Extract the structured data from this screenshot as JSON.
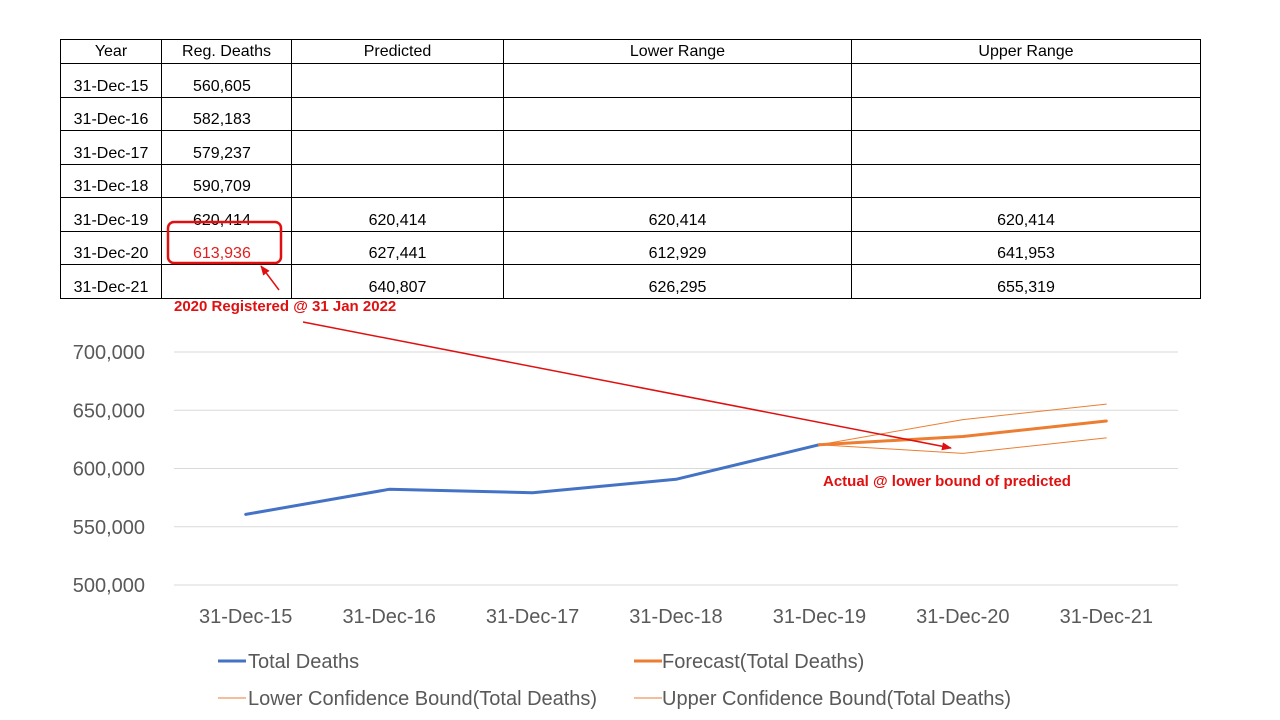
{
  "table": {
    "headers": [
      "Year",
      "Reg. Deaths",
      "Predicted",
      "Lower Range",
      "Upper Range"
    ],
    "rows": [
      [
        "31-Dec-15",
        "560,605",
        "",
        "",
        ""
      ],
      [
        "31-Dec-16",
        "582,183",
        "",
        "",
        ""
      ],
      [
        "31-Dec-17",
        "579,237",
        "",
        "",
        ""
      ],
      [
        "31-Dec-18",
        "590,709",
        "",
        "",
        ""
      ],
      [
        "31-Dec-19",
        "620,414",
        "620,414",
        "620,414",
        "620,414"
      ],
      [
        "31-Dec-20",
        "613,936",
        "627,441",
        "612,929",
        "641,953"
      ],
      [
        "31-Dec-21",
        "",
        "640,807",
        "626,295",
        "655,319"
      ]
    ],
    "highlight_color": "#e02020"
  },
  "annotations": {
    "registered_note": "2020 Registered @ 31 Jan 2022",
    "actual_note": "Actual @ lower bound of predicted",
    "color": "#e01010"
  },
  "chart_data": {
    "type": "line",
    "categories": [
      "31-Dec-15",
      "31-Dec-16",
      "31-Dec-17",
      "31-Dec-18",
      "31-Dec-19",
      "31-Dec-20",
      "31-Dec-21"
    ],
    "ylim": [
      500000,
      700000
    ],
    "yticks": [
      500000,
      550000,
      600000,
      650000,
      700000
    ],
    "ytick_labels": [
      "500,000",
      "550,000",
      "600,000",
      "650,000",
      "700,000"
    ],
    "grid": true,
    "legend_position": "bottom",
    "series": [
      {
        "name": "Total Deaths",
        "color": "#4472c4",
        "width": 3,
        "values": [
          560605,
          582183,
          579237,
          590709,
          620414,
          null,
          null
        ]
      },
      {
        "name": "Forecast(Total Deaths)",
        "color": "#ed7d31",
        "width": 3,
        "values": [
          null,
          null,
          null,
          null,
          620414,
          627441,
          640807
        ]
      },
      {
        "name": "Lower Confidence Bound(Total Deaths)",
        "color": "#ed7d31",
        "width": 1,
        "values": [
          null,
          null,
          null,
          null,
          620414,
          612929,
          626295
        ]
      },
      {
        "name": "Upper Confidence Bound(Total Deaths)",
        "color": "#ed7d31",
        "width": 1,
        "values": [
          null,
          null,
          null,
          null,
          620414,
          641953,
          655319
        ]
      }
    ]
  }
}
